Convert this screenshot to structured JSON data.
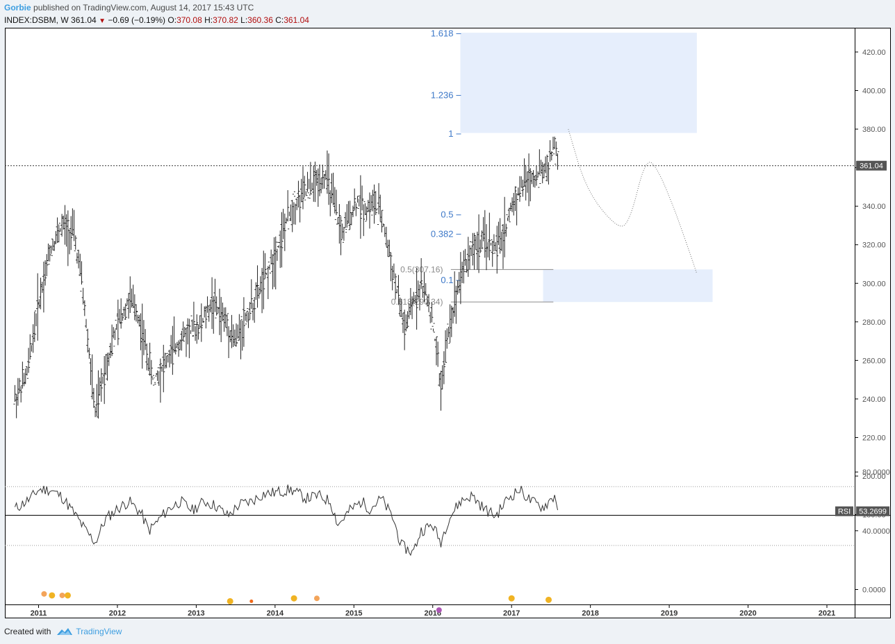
{
  "header": {
    "author": "Gorbie",
    "published_text": "published on TradingView.com, August 14, 2017 15:43 UTC",
    "symbol": "INDEX:DSBM, W",
    "price": "361.04",
    "change": "−0.69 (−0.19%)",
    "open_label": "O:",
    "open": "370.08",
    "high_label": "H:",
    "high": "370.82",
    "low_label": "L:",
    "low": "360.36",
    "close_label": "C:",
    "close": "361.04"
  },
  "footer": {
    "created_with": "Created with",
    "brand": "TradingView"
  },
  "colors": {
    "fib": "#3d78c8",
    "zone": "#e6eefc",
    "grid": "#000000",
    "bar": "#222222",
    "label_bg": "#555555",
    "retr": "#8a8a8a"
  },
  "chart_data": [
    {
      "type": "ohlc",
      "name": "INDEX:DSBM weekly",
      "y_ticks": [
        "420.00",
        "400.00",
        "380.00",
        "360.00",
        "340.00",
        "320.00",
        "300.00",
        "280.00",
        "260.00",
        "240.00",
        "220.00",
        "200.00",
        "180.00"
      ],
      "x_ticks": [
        "2011",
        "2012",
        "2013",
        "2014",
        "2015",
        "2016",
        "2017",
        "2018",
        "2019",
        "2020",
        "2021"
      ],
      "ylim": [
        180,
        420
      ],
      "last_price_label": "361.04",
      "last_price": 361.04,
      "price_path": [
        [
          2010.7,
          240
        ],
        [
          2010.85,
          252
        ],
        [
          2011.0,
          290
        ],
        [
          2011.15,
          318
        ],
        [
          2011.3,
          330
        ],
        [
          2011.45,
          325
        ],
        [
          2011.55,
          300
        ],
        [
          2011.65,
          260
        ],
        [
          2011.72,
          232
        ],
        [
          2011.8,
          248
        ],
        [
          2011.92,
          268
        ],
        [
          2012.05,
          283
        ],
        [
          2012.15,
          292
        ],
        [
          2012.25,
          285
        ],
        [
          2012.35,
          268
        ],
        [
          2012.45,
          250
        ],
        [
          2012.6,
          258
        ],
        [
          2012.75,
          268
        ],
        [
          2012.9,
          275
        ],
        [
          2013.05,
          278
        ],
        [
          2013.2,
          290
        ],
        [
          2013.35,
          282
        ],
        [
          2013.5,
          270
        ],
        [
          2013.6,
          280
        ],
        [
          2013.75,
          292
        ],
        [
          2013.9,
          305
        ],
        [
          2014.05,
          320
        ],
        [
          2014.2,
          338
        ],
        [
          2014.35,
          346
        ],
        [
          2014.5,
          352
        ],
        [
          2014.65,
          356
        ],
        [
          2014.75,
          340
        ],
        [
          2014.85,
          325
        ],
        [
          2014.95,
          335
        ],
        [
          2015.05,
          343
        ],
        [
          2015.15,
          338
        ],
        [
          2015.25,
          342
        ],
        [
          2015.35,
          335
        ],
        [
          2015.45,
          315
        ],
        [
          2015.55,
          295
        ],
        [
          2015.65,
          275
        ],
        [
          2015.75,
          290
        ],
        [
          2015.85,
          300
        ],
        [
          2015.95,
          290
        ],
        [
          2016.05,
          265
        ],
        [
          2016.1,
          245
        ],
        [
          2016.2,
          275
        ],
        [
          2016.35,
          305
        ],
        [
          2016.5,
          318
        ],
        [
          2016.65,
          322
        ],
        [
          2016.8,
          318
        ],
        [
          2016.9,
          325
        ],
        [
          2017.0,
          340
        ],
        [
          2017.15,
          352
        ],
        [
          2017.3,
          356
        ],
        [
          2017.45,
          360
        ],
        [
          2017.55,
          372
        ],
        [
          2017.6,
          361
        ]
      ],
      "projection": [
        [
          2017.72,
          380
        ],
        [
          2017.95,
          348
        ],
        [
          2018.35,
          328
        ],
        [
          2018.5,
          332
        ],
        [
          2018.7,
          365
        ],
        [
          2018.85,
          360
        ],
        [
          2019.1,
          335
        ],
        [
          2019.35,
          305
        ]
      ],
      "target_zone_upper": {
        "x": [
          2016.35,
          2019.35
        ],
        "y": [
          378,
          430
        ]
      },
      "target_zone_lower": {
        "x": [
          2017.4,
          2019.55
        ],
        "y": [
          290.3,
          307.2
        ]
      },
      "fib_extensions": [
        {
          "label": "1.618",
          "y": 429.5
        },
        {
          "label": "1.236",
          "y": 397.5
        },
        {
          "label": "1",
          "y": 377.5
        },
        {
          "label": "0.5",
          "y": 335.5
        },
        {
          "label": "0.382",
          "y": 325.5
        },
        {
          "label": "0.1",
          "y": 301.5
        }
      ],
      "retracements": [
        {
          "label": "0.5(307.16)",
          "y": 307.16
        },
        {
          "label": "0.618(290.34)",
          "y": 290.34
        }
      ]
    },
    {
      "type": "line",
      "name": "RSI",
      "y_ticks": [
        "80.0000",
        "40.0000",
        "0.0000"
      ],
      "ylim": [
        -20,
        100
      ],
      "bands": [
        70,
        30
      ],
      "label": "RSI",
      "value_label": "53.2699",
      "path": [
        [
          2010.7,
          55
        ],
        [
          2010.9,
          62
        ],
        [
          2011.0,
          68
        ],
        [
          2011.15,
          68
        ],
        [
          2011.3,
          63
        ],
        [
          2011.45,
          52
        ],
        [
          2011.6,
          40
        ],
        [
          2011.72,
          32
        ],
        [
          2011.85,
          48
        ],
        [
          2012.0,
          55
        ],
        [
          2012.15,
          60
        ],
        [
          2012.3,
          52
        ],
        [
          2012.4,
          40
        ],
        [
          2012.5,
          46
        ],
        [
          2012.65,
          55
        ],
        [
          2012.8,
          60
        ],
        [
          2012.95,
          54
        ],
        [
          2013.1,
          60
        ],
        [
          2013.25,
          57
        ],
        [
          2013.4,
          50
        ],
        [
          2013.55,
          58
        ],
        [
          2013.7,
          60
        ],
        [
          2013.85,
          65
        ],
        [
          2014.0,
          66
        ],
        [
          2014.2,
          68
        ],
        [
          2014.4,
          62
        ],
        [
          2014.55,
          64
        ],
        [
          2014.7,
          60
        ],
        [
          2014.8,
          44
        ],
        [
          2014.95,
          54
        ],
        [
          2015.1,
          60
        ],
        [
          2015.2,
          55
        ],
        [
          2015.35,
          62
        ],
        [
          2015.5,
          48
        ],
        [
          2015.6,
          30
        ],
        [
          2015.75,
          25
        ],
        [
          2015.85,
          40
        ],
        [
          2016.0,
          44
        ],
        [
          2016.1,
          32
        ],
        [
          2016.2,
          48
        ],
        [
          2016.35,
          60
        ],
        [
          2016.5,
          64
        ],
        [
          2016.65,
          55
        ],
        [
          2016.8,
          50
        ],
        [
          2016.95,
          62
        ],
        [
          2017.1,
          68
        ],
        [
          2017.25,
          60
        ],
        [
          2017.4,
          56
        ],
        [
          2017.55,
          64
        ],
        [
          2017.6,
          53
        ]
      ],
      "markers": [
        {
          "x": 2011.07,
          "y": -3,
          "color": "#f3a45a",
          "r": 4
        },
        {
          "x": 2011.17,
          "y": -4,
          "color": "#f0b323",
          "r": 4.5
        },
        {
          "x": 2011.3,
          "y": -4,
          "color": "#f3a45a",
          "r": 4
        },
        {
          "x": 2011.37,
          "y": -4,
          "color": "#f0b323",
          "r": 4.5
        },
        {
          "x": 2013.43,
          "y": -8,
          "color": "#f0b323",
          "r": 4.5
        },
        {
          "x": 2013.7,
          "y": -8,
          "color": "#f06a1a",
          "r": 2.5
        },
        {
          "x": 2014.24,
          "y": -6,
          "color": "#f0b323",
          "r": 4.5
        },
        {
          "x": 2014.53,
          "y": -6,
          "color": "#f3a45a",
          "r": 4
        },
        {
          "x": 2016.08,
          "y": -14,
          "color": "#ad56b5",
          "r": 4
        },
        {
          "x": 2017.0,
          "y": -6,
          "color": "#f0b323",
          "r": 4.5
        },
        {
          "x": 2017.47,
          "y": -7,
          "color": "#f0b323",
          "r": 4.5
        }
      ]
    }
  ]
}
